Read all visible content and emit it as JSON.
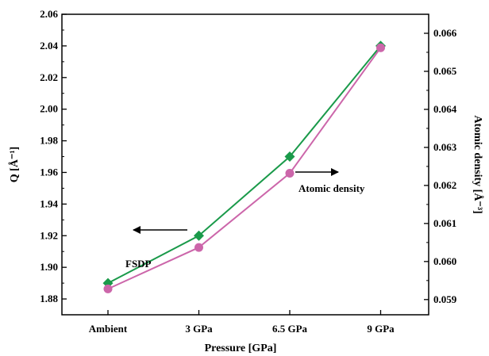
{
  "chart_data": {
    "type": "line",
    "categories": [
      "Ambient",
      "3 GPa",
      "6.5 GPa",
      "9 GPa"
    ],
    "xlabel": "Pressure [GPa]",
    "ylabel_left": "Q [Å⁻¹]",
    "ylabel_right": "Atomic density [Å⁻³]",
    "y_left": {
      "lim": [
        1.87,
        2.06
      ],
      "ticks": [
        1.88,
        1.9,
        1.92,
        1.94,
        1.96,
        1.98,
        2.0,
        2.02,
        2.04,
        2.06
      ],
      "tick_labels": [
        "1.88",
        "1.90",
        "1.92",
        "1.94",
        "1.96",
        "1.98",
        "2.00",
        "2.02",
        "2.04",
        "2.06"
      ]
    },
    "y_right": {
      "lim": [
        0.0586,
        0.0665
      ],
      "ticks": [
        0.059,
        0.06,
        0.061,
        0.062,
        0.063,
        0.064,
        0.065,
        0.066
      ],
      "tick_labels": [
        "0.059",
        "0.060",
        "0.061",
        "0.062",
        "0.063",
        "0.064",
        "0.065",
        "0.066"
      ]
    },
    "grid": false,
    "series": [
      {
        "axis": "left",
        "marker": "diamond",
        "color": "#1a9a4a",
        "values": [
          1.89,
          1.92,
          1.97,
          2.04
        ]
      },
      {
        "axis": "right",
        "marker": "circle",
        "color": "#cc66aa",
        "values": [
          0.05928,
          0.06037,
          0.06232,
          0.06562
        ]
      }
    ],
    "annotations": [
      {
        "text": "FSDP",
        "arrow": "left"
      },
      {
        "text": "Atomic density",
        "arrow": "right"
      }
    ]
  }
}
